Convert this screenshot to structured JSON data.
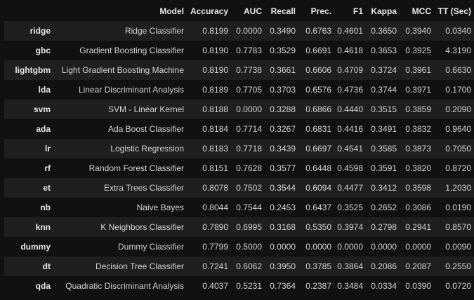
{
  "table": {
    "columns": [
      "Model",
      "Accuracy",
      "AUC",
      "Recall",
      "Prec.",
      "F1",
      "Kappa",
      "MCC",
      "TT (Sec)"
    ],
    "rows": [
      {
        "id": "ridge",
        "model": "Ridge Classifier",
        "accuracy": "0.8199",
        "auc": "0.0000",
        "recall": "0.3490",
        "prec": "0.6763",
        "f1": "0.4601",
        "kappa": "0.3650",
        "mcc": "0.3940",
        "tt": "0.0340"
      },
      {
        "id": "gbc",
        "model": "Gradient Boosting Classifier",
        "accuracy": "0.8190",
        "auc": "0.7783",
        "recall": "0.3529",
        "prec": "0.6691",
        "f1": "0.4618",
        "kappa": "0.3653",
        "mcc": "0.3925",
        "tt": "4.3190"
      },
      {
        "id": "lightgbm",
        "model": "Light Gradient Boosting Machine",
        "accuracy": "0.8190",
        "auc": "0.7738",
        "recall": "0.3661",
        "prec": "0.6606",
        "f1": "0.4709",
        "kappa": "0.3724",
        "mcc": "0.3961",
        "tt": "0.6630"
      },
      {
        "id": "lda",
        "model": "Linear Discriminant Analysis",
        "accuracy": "0.8189",
        "auc": "0.7705",
        "recall": "0.3703",
        "prec": "0.6576",
        "f1": "0.4736",
        "kappa": "0.3744",
        "mcc": "0.3971",
        "tt": "0.1700"
      },
      {
        "id": "svm",
        "model": "SVM - Linear Kernel",
        "accuracy": "0.8188",
        "auc": "0.0000",
        "recall": "0.3288",
        "prec": "0.6866",
        "f1": "0.4440",
        "kappa": "0.3515",
        "mcc": "0.3859",
        "tt": "0.2090"
      },
      {
        "id": "ada",
        "model": "Ada Boost Classifier",
        "accuracy": "0.8184",
        "auc": "0.7714",
        "recall": "0.3267",
        "prec": "0.6831",
        "f1": "0.4416",
        "kappa": "0.3491",
        "mcc": "0.3832",
        "tt": "0.9640"
      },
      {
        "id": "lr",
        "model": "Logistic Regression",
        "accuracy": "0.8183",
        "auc": "0.7718",
        "recall": "0.3439",
        "prec": "0.6697",
        "f1": "0.4541",
        "kappa": "0.3585",
        "mcc": "0.3873",
        "tt": "0.7050"
      },
      {
        "id": "rf",
        "model": "Random Forest Classifier",
        "accuracy": "0.8151",
        "auc": "0.7628",
        "recall": "0.3577",
        "prec": "0.6448",
        "f1": "0.4598",
        "kappa": "0.3591",
        "mcc": "0.3820",
        "tt": "0.8720"
      },
      {
        "id": "et",
        "model": "Extra Trees Classifier",
        "accuracy": "0.8078",
        "auc": "0.7502",
        "recall": "0.3544",
        "prec": "0.6094",
        "f1": "0.4477",
        "kappa": "0.3412",
        "mcc": "0.3598",
        "tt": "1.2030"
      },
      {
        "id": "nb",
        "model": "Naive Bayes",
        "accuracy": "0.8044",
        "auc": "0.7544",
        "recall": "0.2453",
        "prec": "0.6437",
        "f1": "0.3525",
        "kappa": "0.2652",
        "mcc": "0.3086",
        "tt": "0.0190"
      },
      {
        "id": "knn",
        "model": "K Neighbors Classifier",
        "accuracy": "0.7890",
        "auc": "0.6995",
        "recall": "0.3168",
        "prec": "0.5350",
        "f1": "0.3974",
        "kappa": "0.2798",
        "mcc": "0.2941",
        "tt": "0.8570"
      },
      {
        "id": "dummy",
        "model": "Dummy Classifier",
        "accuracy": "0.7799",
        "auc": "0.5000",
        "recall": "0.0000",
        "prec": "0.0000",
        "f1": "0.0000",
        "kappa": "0.0000",
        "mcc": "0.0000",
        "tt": "0.0090"
      },
      {
        "id": "dt",
        "model": "Decision Tree Classifier",
        "accuracy": "0.7241",
        "auc": "0.6062",
        "recall": "0.3950",
        "prec": "0.3785",
        "f1": "0.3864",
        "kappa": "0.2086",
        "mcc": "0.2087",
        "tt": "0.2550"
      },
      {
        "id": "qda",
        "model": "Quadratic Discriminant Analysis",
        "accuracy": "0.4037",
        "auc": "0.5231",
        "recall": "0.7364",
        "prec": "0.2387",
        "f1": "0.3484",
        "kappa": "0.0334",
        "mcc": "0.0390",
        "tt": "0.0720"
      }
    ]
  }
}
